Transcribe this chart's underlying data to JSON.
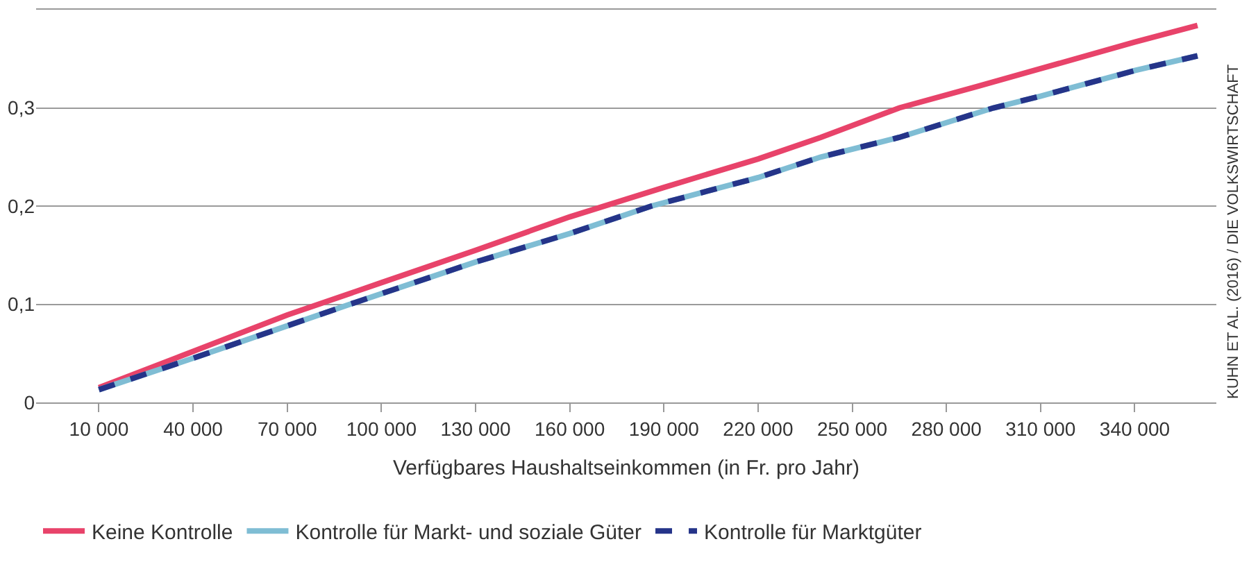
{
  "chart_data": {
    "type": "line",
    "xlabel": "Verfügbares Haushaltseinkommen (in Fr. pro Jahr)",
    "annotations": [
      "KUHN ET AL. (2016) / DIE VOLKSWIRTSCHAFT"
    ],
    "series": [
      {
        "name": "Keine Kontrolle",
        "color": "#e8436a",
        "line_style": "solid",
        "x": [
          10000,
          40000,
          70000,
          100000,
          130000,
          160000,
          190000,
          220000,
          240000,
          265000,
          290000,
          310000,
          340000,
          360000
        ],
        "values": [
          0.015,
          0.052,
          0.089,
          0.122,
          0.155,
          0.189,
          0.219,
          0.248,
          0.27,
          0.3,
          0.322,
          0.34,
          0.367,
          0.384
        ]
      },
      {
        "name": "Kontrolle für Markt- und soziale Güter",
        "color": "#7fbdd4",
        "line_style": "solid",
        "x": [
          10000,
          40000,
          70000,
          90000,
          130000,
          160000,
          186000,
          220000,
          240000,
          265000,
          295000,
          310000,
          340000,
          360000
        ],
        "values": [
          0.013,
          0.045,
          0.078,
          0.1,
          0.143,
          0.172,
          0.2,
          0.229,
          0.25,
          0.27,
          0.3,
          0.312,
          0.338,
          0.353
        ]
      },
      {
        "name": "Kontrolle für Marktgüter",
        "color": "#253489",
        "line_style": "dashed",
        "x": [
          10000,
          40000,
          70000,
          90000,
          130000,
          160000,
          186000,
          220000,
          240000,
          265000,
          295000,
          310000,
          340000,
          360000
        ],
        "values": [
          0.013,
          0.045,
          0.078,
          0.1,
          0.143,
          0.172,
          0.2,
          0.229,
          0.25,
          0.27,
          0.3,
          0.312,
          0.338,
          0.353
        ]
      }
    ],
    "xlim": [
      -10000,
      366000
    ],
    "xticks": [
      {
        "value": 10000,
        "label": "10 000"
      },
      {
        "value": 40000,
        "label": "40 000"
      },
      {
        "value": 70000,
        "label": "70 000"
      },
      {
        "value": 100000,
        "label": "100 000"
      },
      {
        "value": 130000,
        "label": "130 000"
      },
      {
        "value": 160000,
        "label": "160 000"
      },
      {
        "value": 190000,
        "label": "190 000"
      },
      {
        "value": 220000,
        "label": "220 000"
      },
      {
        "value": 250000,
        "label": "250 000"
      },
      {
        "value": 280000,
        "label": "280 000"
      },
      {
        "value": 310000,
        "label": "310 000"
      },
      {
        "value": 340000,
        "label": "340 000"
      }
    ],
    "ylim": [
      0,
      0.4
    ],
    "yticks": [
      0,
      {
        "value": 0.1,
        "label": "0,1"
      },
      {
        "value": 0.2,
        "label": "0,2"
      },
      {
        "value": 0.3,
        "label": "0,3"
      },
      {
        "value": 0.4,
        "label": null
      }
    ],
    "grid": "y",
    "legend": "bottom left",
    "marker": "none"
  }
}
